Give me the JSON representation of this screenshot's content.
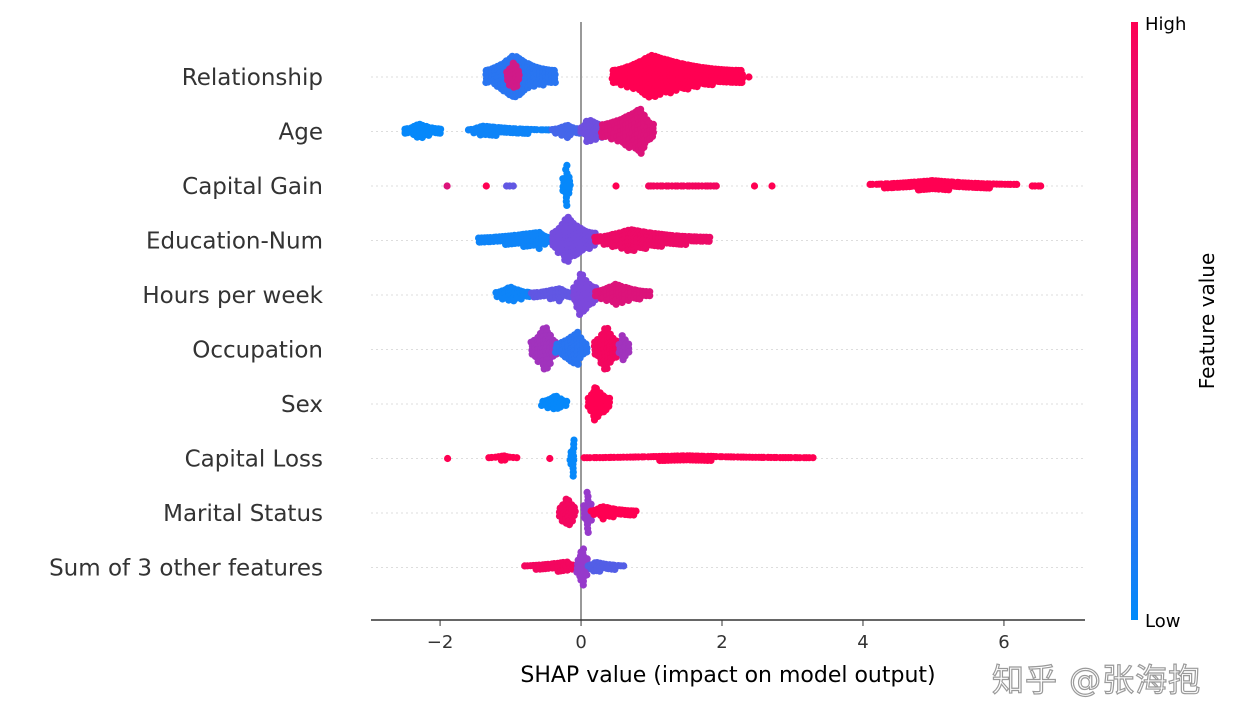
{
  "chart_data": {
    "type": "scatter",
    "subtype": "shap-beeswarm",
    "xlabel": "SHAP value (impact on model output)",
    "xlim": [
      -2.98,
      7.15
    ],
    "xticks": [
      -2,
      0,
      2,
      4,
      6
    ],
    "xtick_labels": [
      "−2",
      "0",
      "2",
      "4",
      "6"
    ],
    "grid": "dotted horizontal row guides",
    "zero_line": 0,
    "colorbar": {
      "label": "Feature value",
      "high": "High",
      "low": "Low",
      "low_color": "#008bfb",
      "mid_color": "#8a40d8",
      "high_color": "#ff0052"
    },
    "features": [
      {
        "name": "Relationship",
        "clusters": [
          {
            "x": [
              -1.35,
              -0.35
            ],
            "peak": -0.95,
            "value": 0.15,
            "density": 0.4
          },
          {
            "x": [
              -1.05,
              -0.85
            ],
            "peak": -0.95,
            "value": 0.8,
            "density": 0.3
          },
          {
            "x": [
              0.45,
              2.3
            ],
            "peak": 1.0,
            "value": 1.0,
            "density": 0.4
          },
          {
            "x": [
              2.38,
              2.38
            ],
            "peak": 2.38,
            "value": 1.0,
            "density": 0
          }
        ]
      },
      {
        "name": "Age",
        "clusters": [
          {
            "x": [
              -2.5,
              -1.95
            ],
            "peak": -2.3,
            "value": 0.02,
            "density": 0.14
          },
          {
            "x": [
              -1.6,
              -0.4
            ],
            "peak": -1.4,
            "value": 0.05,
            "density": 0.1
          },
          {
            "x": [
              -0.4,
              0.05
            ],
            "peak": -0.2,
            "value": 0.25,
            "density": 0.12
          },
          {
            "x": [
              0.0,
              0.55
            ],
            "peak": 0.1,
            "value": 0.4,
            "density": 0.22
          },
          {
            "x": [
              0.3,
              1.05
            ],
            "peak": 0.85,
            "value": 0.85,
            "density": 0.42
          }
        ]
      },
      {
        "name": "Capital Gain",
        "clusters": [
          {
            "x": [
              -1.9,
              -1.9
            ],
            "peak": -1.9,
            "value": 0.85,
            "density": 0
          },
          {
            "x": [
              -1.35,
              -1.35
            ],
            "peak": -1.35,
            "value": 1.0,
            "density": 0
          },
          {
            "x": [
              -1.05,
              -0.95
            ],
            "peak": -1.0,
            "value": 0.35,
            "density": 0
          },
          {
            "x": [
              -0.25,
              -0.15
            ],
            "peak": -0.2,
            "value": 0.02,
            "density": 0.45
          },
          {
            "x": [
              0.5,
              0.5
            ],
            "peak": 0.5,
            "value": 1.0,
            "density": 0
          },
          {
            "x": [
              0.95,
              1.95
            ],
            "peak": 1.2,
            "value": 0.95,
            "density": 0
          },
          {
            "x": [
              2.45,
              2.45
            ],
            "peak": 2.45,
            "value": 1.0,
            "density": 0
          },
          {
            "x": [
              2.7,
              2.7
            ],
            "peak": 2.7,
            "value": 1.0,
            "density": 0
          },
          {
            "x": [
              4.1,
              6.2
            ],
            "peak": 5.0,
            "value": 1.0,
            "density": 0.1
          },
          {
            "x": [
              6.4,
              6.55
            ],
            "peak": 6.5,
            "value": 1.0,
            "density": 0
          }
        ]
      },
      {
        "name": "Education-Num",
        "clusters": [
          {
            "x": [
              -1.45,
              -0.4
            ],
            "peak": -0.6,
            "value": 0.05,
            "density": 0.15
          },
          {
            "x": [
              -0.4,
              0.2
            ],
            "peak": -0.2,
            "value": 0.42,
            "density": 0.45
          },
          {
            "x": [
              0.2,
              1.85
            ],
            "peak": 0.7,
            "value": 0.92,
            "density": 0.2
          }
        ]
      },
      {
        "name": "Hours per week",
        "clusters": [
          {
            "x": [
              -1.2,
              -0.7
            ],
            "peak": -1.0,
            "value": 0.05,
            "density": 0.15
          },
          {
            "x": [
              -0.7,
              -0.1
            ],
            "peak": -0.3,
            "value": 0.35,
            "density": 0.12
          },
          {
            "x": [
              -0.1,
              0.2
            ],
            "peak": 0.0,
            "value": 0.45,
            "density": 0.45
          },
          {
            "x": [
              0.2,
              1.0
            ],
            "peak": 0.5,
            "value": 0.85,
            "density": 0.2
          }
        ]
      },
      {
        "name": "Occupation",
        "clusters": [
          {
            "x": [
              -0.7,
              -0.35
            ],
            "peak": -0.5,
            "value": 0.6,
            "density": 0.45
          },
          {
            "x": [
              -0.35,
              0.1
            ],
            "peak": -0.05,
            "value": 0.15,
            "density": 0.32
          },
          {
            "x": [
              0.2,
              0.55
            ],
            "peak": 0.35,
            "value": 0.95,
            "density": 0.45
          },
          {
            "x": [
              0.55,
              0.7
            ],
            "peak": 0.6,
            "value": 0.6,
            "density": 0.3
          }
        ]
      },
      {
        "name": "Sex",
        "clusters": [
          {
            "x": [
              -0.55,
              -0.2
            ],
            "peak": -0.35,
            "value": 0.02,
            "density": 0.16
          },
          {
            "x": [
              0.1,
              0.4
            ],
            "peak": 0.2,
            "value": 1.0,
            "density": 0.35
          }
        ]
      },
      {
        "name": "Capital Loss",
        "clusters": [
          {
            "x": [
              -1.9,
              -1.9
            ],
            "peak": -1.9,
            "value": 1.0,
            "density": 0
          },
          {
            "x": [
              -1.3,
              -0.9
            ],
            "peak": -1.1,
            "value": 1.0,
            "density": 0.05
          },
          {
            "x": [
              -0.45,
              -0.45
            ],
            "peak": -0.45,
            "value": 1.0,
            "density": 0
          },
          {
            "x": [
              -0.15,
              -0.07
            ],
            "peak": -0.1,
            "value": 0.02,
            "density": 0.4
          },
          {
            "x": [
              0.05,
              3.3
            ],
            "peak": 1.5,
            "value": 1.0,
            "density": 0.05
          }
        ]
      },
      {
        "name": "Marital Status",
        "clusters": [
          {
            "x": [
              -0.3,
              -0.05
            ],
            "peak": -0.2,
            "value": 0.95,
            "density": 0.3
          },
          {
            "x": [
              0.05,
              0.15
            ],
            "peak": 0.1,
            "value": 0.55,
            "density": 0.45
          },
          {
            "x": [
              0.15,
              0.8
            ],
            "peak": 0.3,
            "value": 1.0,
            "density": 0.12
          }
        ]
      },
      {
        "name": "Sum of 3 other features",
        "clusters": [
          {
            "x": [
              -0.8,
              -0.05
            ],
            "peak": -0.2,
            "value": 0.95,
            "density": 0.1
          },
          {
            "x": [
              -0.05,
              0.1
            ],
            "peak": 0.02,
            "value": 0.55,
            "density": 0.45
          },
          {
            "x": [
              0.1,
              0.65
            ],
            "peak": 0.2,
            "value": 0.3,
            "density": 0.1
          }
        ]
      }
    ]
  },
  "watermark": "知乎 @张海抱"
}
